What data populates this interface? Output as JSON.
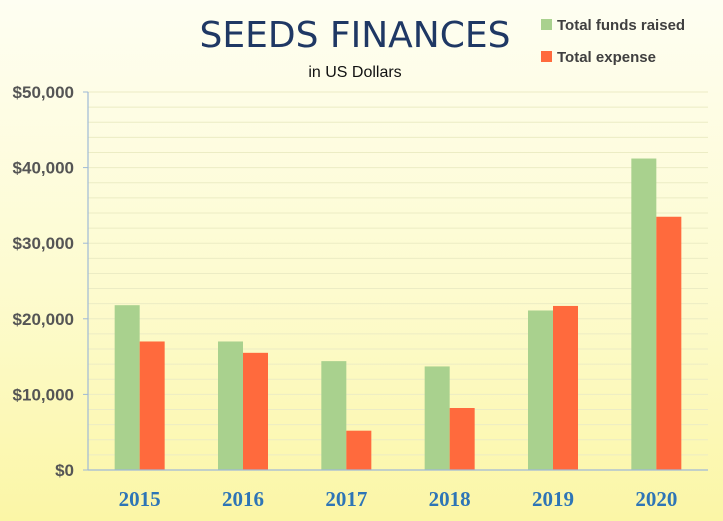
{
  "chart_data": {
    "type": "bar",
    "title": "SEEDS FINANCES",
    "subtitle": "in US Dollars",
    "xlabel": "",
    "ylabel": "",
    "categories": [
      "2015",
      "2016",
      "2017",
      "2018",
      "2019",
      "2020"
    ],
    "series": [
      {
        "name": "Total funds raised",
        "color": "#a9d18e",
        "values": [
          21800,
          17000,
          14400,
          13700,
          21100,
          41200
        ]
      },
      {
        "name": "Total expense",
        "color": "#ff6a3d",
        "values": [
          17000,
          15500,
          5200,
          8200,
          21700,
          33500
        ]
      }
    ],
    "ylim": [
      0,
      50000
    ],
    "yticks": [
      0,
      10000,
      20000,
      30000,
      40000,
      50000
    ],
    "ytick_labels": [
      "$0",
      "$10,000",
      "$20,000",
      "$30,000",
      "$40,000",
      "$50,000"
    ],
    "grid": true,
    "legend_position": "top-right"
  }
}
